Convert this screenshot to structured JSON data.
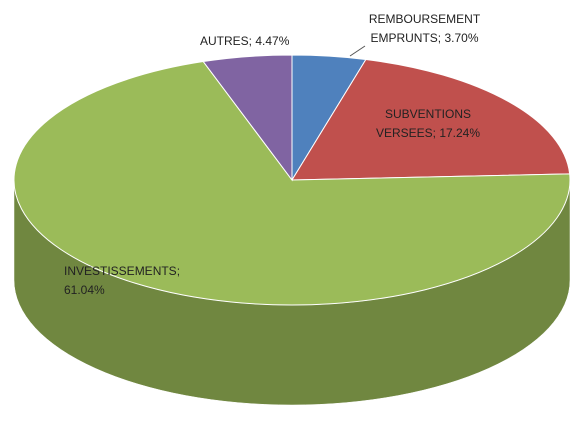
{
  "chart_data": {
    "type": "pie3d",
    "categories": [
      "REMBOURSEMENT EMPRUNTS;",
      "SUBVENTIONS VERSEES;",
      "INVESTISSEMENTS;",
      "AUTRES;"
    ],
    "values": [
      3.7,
      17.24,
      61.04,
      4.47
    ],
    "value_labels": [
      "3.70%",
      "17.24%",
      "61.04%",
      "4.47%"
    ],
    "colors": [
      "#4f81bd",
      "#c0504d",
      "#9bbb59",
      "#8064a2"
    ]
  }
}
